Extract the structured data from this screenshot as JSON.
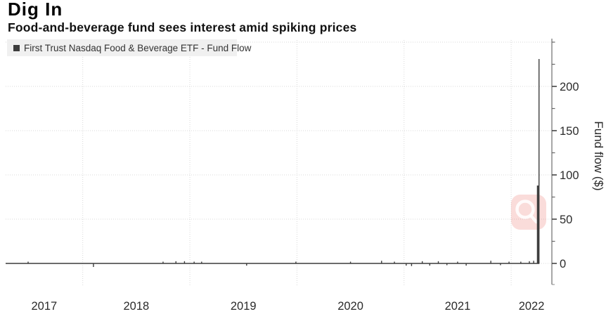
{
  "header": {
    "title": "Dig In",
    "subtitle": "Food-and-beverage fund sees interest amid spiking prices"
  },
  "legend": {
    "label": "First Trust Nasdaq Food & Beverage ETF - Fund Flow",
    "marker_color": "#3d3d3d"
  },
  "overlay": {
    "icon": "magnifier-icon",
    "bg_color": "rgba(238,140,132,0.30)",
    "ring_color": "rgba(255,255,255,0.85)"
  },
  "colors": {
    "series": "#3c3c3c",
    "grid": "#d9d9d9",
    "axis": "#8a8a8a",
    "tick_text": "#2b2b2b",
    "legend_bg": "#f0f0f0"
  },
  "chart_data": {
    "type": "bar",
    "title": "Dig In",
    "subtitle": "Food-and-beverage fund sees interest amid spiking prices",
    "legend_entries": [
      "First Trust Nasdaq Food & Beverage ETF - Fund Flow"
    ],
    "legend_position": "top-left",
    "xlabel": "",
    "ylabel": "Fund flow ($)",
    "y_axis_side": "right",
    "grid": "dotted",
    "x_range": [
      2017.28,
      2022.38
    ],
    "ylim": [
      -24,
      254
    ],
    "x_gridlines": [
      2018,
      2019,
      2020,
      2021,
      2022
    ],
    "x_tick_labels": [
      {
        "label": "2017",
        "x": 2017.64
      },
      {
        "label": "2018",
        "x": 2018.5
      },
      {
        "label": "2019",
        "x": 2019.5
      },
      {
        "label": "2020",
        "x": 2020.5
      },
      {
        "label": "2021",
        "x": 2021.5
      },
      {
        "label": "2022",
        "x": 2022.19
      }
    ],
    "y_ticks": [
      0,
      50,
      100,
      150,
      200
    ],
    "y_minor_ticks": [
      25,
      75,
      125,
      175,
      225,
      250
    ],
    "y_gridlines": [
      0,
      50,
      100,
      150,
      200,
      250
    ],
    "baseline": {
      "value": 0,
      "x_start": 2017.28,
      "x_end": 2022.263
    },
    "bars": [
      [
        2017.49,
        2
      ],
      [
        2018.1,
        -4
      ],
      [
        2018.75,
        2
      ],
      [
        2018.87,
        2.5
      ],
      [
        2018.95,
        2.5
      ],
      [
        2019.04,
        2
      ],
      [
        2019.11,
        2
      ],
      [
        2019.53,
        -2.5
      ],
      [
        2019.99,
        2
      ],
      [
        2020.5,
        2
      ],
      [
        2020.79,
        3
      ],
      [
        2020.91,
        2
      ],
      [
        2021.02,
        -2.5
      ],
      [
        2021.07,
        -3
      ],
      [
        2021.17,
        2.5
      ],
      [
        2021.24,
        -2.5
      ],
      [
        2021.32,
        2.5
      ],
      [
        2021.4,
        -2
      ],
      [
        2021.5,
        2
      ],
      [
        2021.58,
        -2.5
      ],
      [
        2021.81,
        3
      ],
      [
        2021.9,
        -2
      ],
      [
        2021.98,
        2
      ],
      [
        2022.09,
        2
      ],
      [
        2022.17,
        2.5
      ],
      [
        2022.21,
        3
      ],
      [
        2022.245,
        88
      ],
      [
        2022.252,
        88
      ],
      [
        2022.26,
        231
      ]
    ],
    "peak_value": 231,
    "secondary_peak_value": 88
  }
}
